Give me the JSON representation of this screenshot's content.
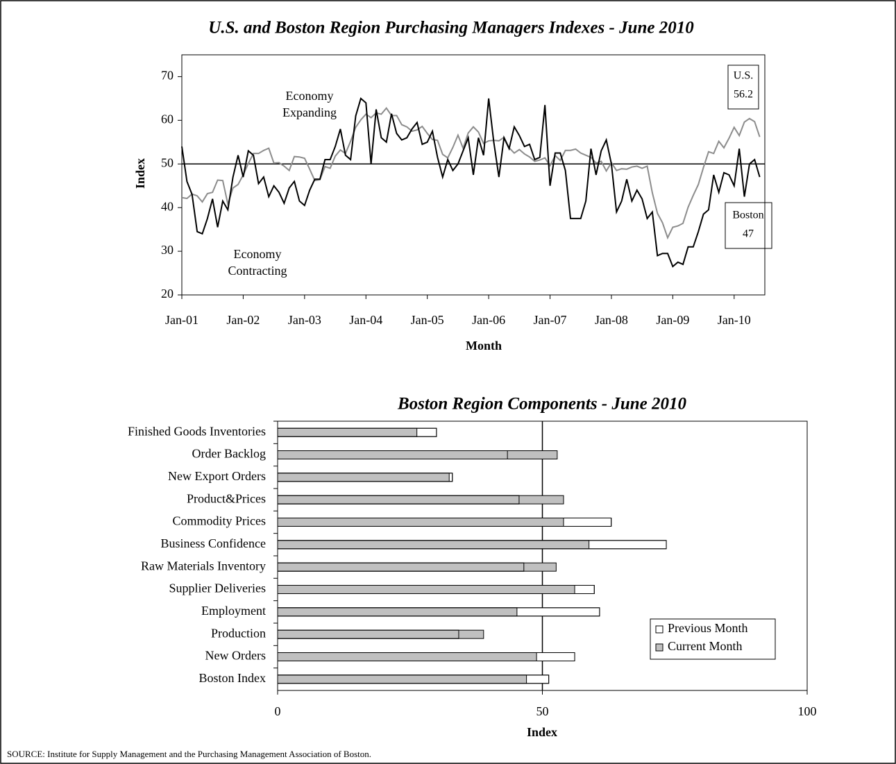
{
  "chart_data": [
    {
      "type": "line",
      "title": "U.S. and Boston Region Purchasing Managers Indexes - June 2010",
      "xlabel": "Month",
      "ylabel": "Index",
      "categories": [
        "Jan-01",
        null,
        null,
        null,
        null,
        null,
        null,
        null,
        null,
        null,
        null,
        null,
        "Jan-02",
        null,
        null,
        null,
        null,
        null,
        null,
        null,
        null,
        null,
        null,
        null,
        "Jan-03",
        null,
        null,
        null,
        null,
        null,
        null,
        null,
        null,
        null,
        null,
        null,
        "Jan-04",
        null,
        null,
        null,
        null,
        null,
        null,
        null,
        null,
        null,
        null,
        null,
        "Jan-05",
        null,
        null,
        null,
        null,
        null,
        null,
        null,
        null,
        null,
        null,
        null,
        "Jan-06",
        null,
        null,
        null,
        null,
        null,
        null,
        null,
        null,
        null,
        null,
        null,
        "Jan-07",
        null,
        null,
        null,
        null,
        null,
        null,
        null,
        null,
        null,
        null,
        null,
        "Jan-08",
        null,
        null,
        null,
        null,
        null,
        null,
        null,
        null,
        null,
        null,
        null,
        "Jan-09",
        null,
        null,
        null,
        null,
        null,
        null,
        null,
        null,
        null,
        null,
        null,
        "Jan-10",
        null,
        null,
        null,
        null,
        null
      ],
      "series": [
        {
          "name": "U.S.",
          "color": "#8c8c8c",
          "values": [
            42.3,
            42.1,
            43.1,
            42.7,
            41.3,
            43.2,
            43.5,
            46.3,
            46.2,
            40.8,
            44.5,
            45.3,
            47.5,
            50.1,
            52.4,
            52.4,
            53.1,
            53.6,
            50.2,
            50.3,
            49.5,
            48.5,
            51.7,
            51.6,
            51.3,
            48.8,
            46.2,
            46.4,
            49.4,
            49.0,
            51.8,
            53.2,
            52.4,
            55.2,
            58.4,
            60.1,
            61.4,
            60.6,
            61.7,
            61.4,
            62.8,
            61.1,
            61.1,
            59.0,
            58.5,
            57.5,
            57.8,
            58.6,
            57.0,
            55.6,
            55.4,
            52.2,
            51.4,
            53.8,
            56.6,
            53.6,
            57.1,
            58.5,
            57.3,
            54.7,
            55.3,
            55.4,
            55.3,
            56.1,
            53.7,
            52.5,
            53.3,
            52.3,
            51.6,
            50.6,
            50.9,
            51.4,
            49.6,
            51.9,
            50.8,
            53.1,
            53.1,
            53.4,
            52.5,
            52.0,
            51.5,
            50.2,
            50.6,
            48.4,
            50.3,
            48.5,
            48.9,
            48.8,
            49.3,
            49.5,
            49.0,
            49.5,
            43.4,
            38.7,
            36.5,
            33.1,
            35.5,
            35.8,
            36.4,
            40.1,
            42.8,
            45.3,
            49.2,
            52.8,
            52.4,
            55.2,
            53.7,
            55.9,
            58.4,
            56.5,
            59.6,
            60.4,
            59.7,
            56.2
          ]
        },
        {
          "name": "Boston",
          "color": "#000000",
          "values": [
            54,
            46,
            43,
            34.5,
            34,
            37.5,
            42,
            35.5,
            41.5,
            39.5,
            47,
            52,
            47,
            53,
            52,
            45.5,
            47,
            42.5,
            45,
            43.5,
            41,
            44.5,
            46,
            41.5,
            40.5,
            44,
            46.5,
            46.5,
            51,
            51,
            54,
            58,
            52,
            51,
            61,
            65,
            64,
            50,
            62.5,
            56,
            55,
            61.5,
            57,
            55.5,
            56,
            58,
            59.5,
            54.5,
            55,
            57.5,
            51.5,
            47,
            51,
            48.5,
            50,
            53,
            56,
            47.5,
            56,
            52,
            65,
            55,
            47,
            56,
            53.5,
            58.5,
            56.5,
            54,
            54.5,
            51,
            51.5,
            63.5,
            45,
            52.5,
            52.5,
            48.5,
            37.5,
            37.5,
            37.5,
            41.5,
            53.5,
            47.5,
            53,
            55.5,
            50,
            39,
            41.5,
            46.5,
            41.5,
            44,
            42,
            37.5,
            39,
            29,
            29.5,
            29.5,
            26.5,
            27.5,
            27,
            31,
            31,
            34.5,
            38.5,
            39.5,
            47.5,
            43.5,
            48,
            47.5,
            45,
            53.5,
            42.5,
            50,
            51,
            47
          ]
        }
      ],
      "ylim": [
        20,
        75
      ],
      "yticks": [
        20,
        30,
        40,
        50,
        60,
        70
      ],
      "hline": 50,
      "annotations": [
        "Economy",
        "Expanding",
        "Economy",
        "Contracting"
      ]
    },
    {
      "type": "hbar",
      "title": "Boston Region Components - June 2010",
      "xlabel": "Index",
      "categories": [
        "Finished Goods Inventories",
        "Order Backlog",
        "New Export Orders",
        "Product&Prices",
        "Commodity Prices",
        "Business Confidence",
        "Raw Materials Inventory",
        "Supplier Deliveries",
        "Employment",
        "Production",
        "New Orders",
        "Boston Index"
      ],
      "series": [
        {
          "name": "Previous Month",
          "color": "#ffffff",
          "values": [
            30.0,
            43.4,
            33.0,
            45.6,
            63.0,
            73.4,
            46.5,
            59.8,
            60.8,
            34.2,
            56.1,
            51.2
          ]
        },
        {
          "name": "Current Month",
          "color": "#c0c0c0",
          "values": [
            26.3,
            52.8,
            32.4,
            54.0,
            54.0,
            58.8,
            52.6,
            56.1,
            45.2,
            38.9,
            48.9,
            47.0
          ]
        }
      ],
      "xlim": [
        0,
        100
      ],
      "xticks": [
        0,
        50,
        100
      ],
      "vline": 50,
      "legend": "lower-right"
    }
  ],
  "source": "SOURCE: Institute for Supply Management and the Purchasing Management Association of Boston."
}
